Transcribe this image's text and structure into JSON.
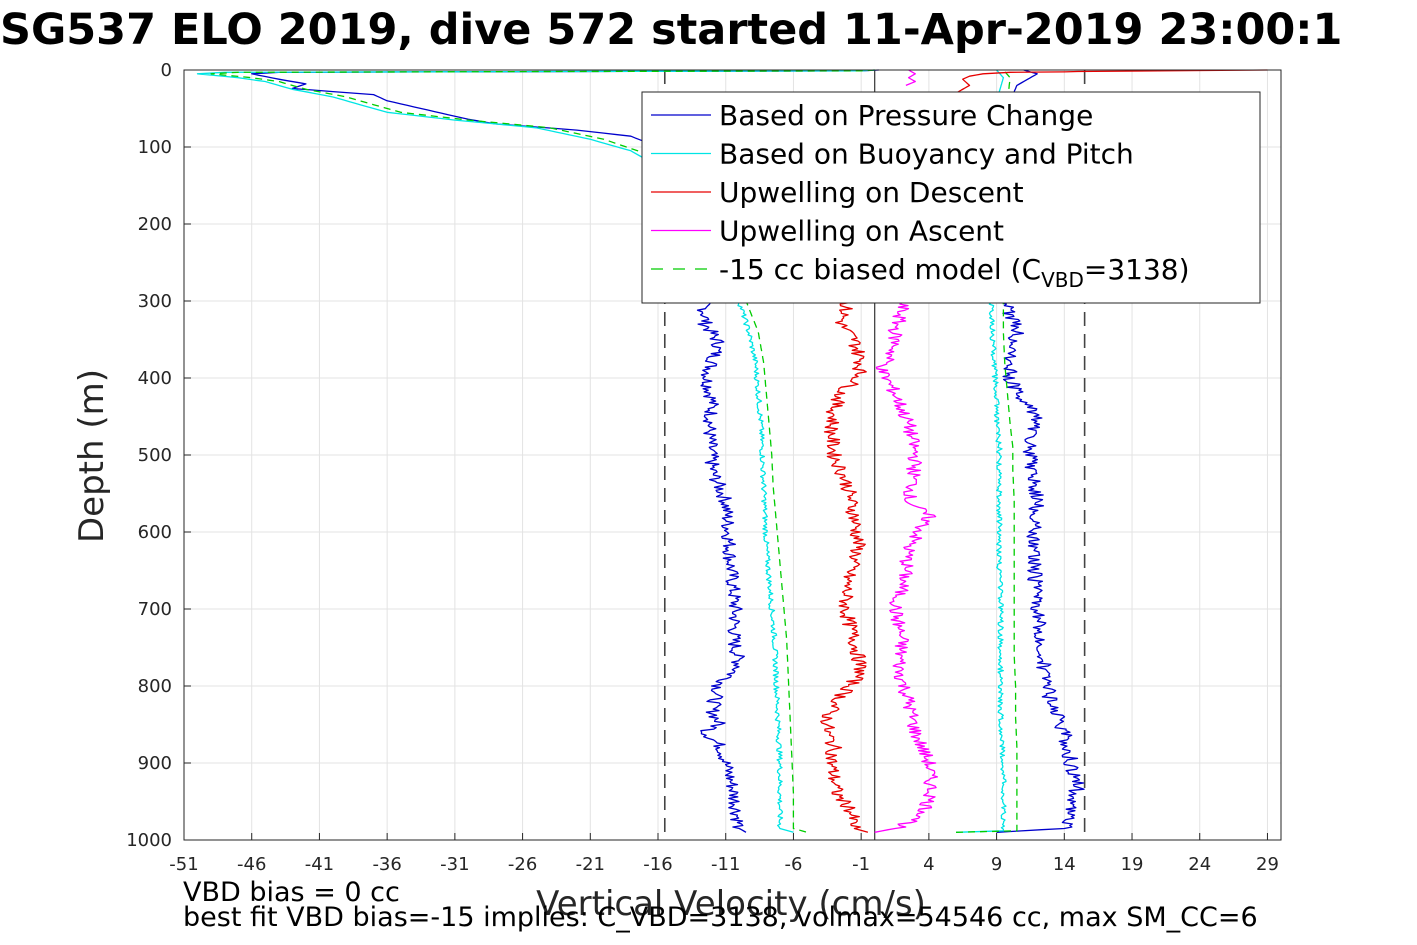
{
  "title": "SG537 ELO 2019, dive 572 started 11-Apr-2019 23:00:1",
  "footer": {
    "line1": "VBD bias = 0 cc",
    "line2": "best fit VBD bias=-15 implies: C_VBD=3138, volmax=54546 cc, max SM_CC=6"
  },
  "chart_data": {
    "type": "line",
    "xlabel": "Vertical Velocity (cm/s)",
    "ylabel": "Depth (m)",
    "xlim": [
      -51,
      30
    ],
    "ylim": [
      0,
      1000
    ],
    "y_reversed": true,
    "xticks": [
      -51,
      -46,
      -41,
      -36,
      -31,
      -26,
      -21,
      -16,
      -11,
      -6,
      -1,
      4,
      9,
      14,
      19,
      24,
      29
    ],
    "yticks": [
      0,
      100,
      200,
      300,
      400,
      500,
      600,
      700,
      800,
      900,
      1000
    ],
    "grid": true,
    "legend_position": "top-right",
    "reference_lines": {
      "zero_line_x": 0,
      "dashed_limits_x": [
        -15.5,
        15.5
      ]
    },
    "legend": [
      {
        "label": "Based on Pressure Change",
        "color": "#0000cc",
        "style": "solid"
      },
      {
        "label": "Based on Buoyancy and Pitch",
        "color": "#00e5e5",
        "style": "solid"
      },
      {
        "label": "Upwelling on Descent",
        "color": "#e60000",
        "style": "solid"
      },
      {
        "label": "Upwelling on Ascent",
        "color": "#ff00ff",
        "style": "solid"
      },
      {
        "label_prefix": "-15 cc biased model (C",
        "label_sub": "VBD",
        "label_suffix": "=3138)",
        "color": "#00cc00",
        "style": "dashed"
      }
    ],
    "series": [
      {
        "name": "Based on Pressure Change",
        "key": "pressure_desc",
        "color": "#0000cc",
        "width": 1.3,
        "points": [
          [
            0.3,
            0
          ],
          [
            -1,
            1
          ],
          [
            -44,
            3
          ],
          [
            -46,
            5
          ],
          [
            -44,
            12
          ],
          [
            -42,
            18
          ],
          [
            -43,
            24
          ],
          [
            -37,
            32
          ],
          [
            -36,
            40
          ],
          [
            -34,
            48
          ],
          [
            -32,
            56
          ],
          [
            -30,
            64
          ],
          [
            -28,
            70
          ],
          [
            -22,
            78
          ],
          [
            -18,
            86
          ],
          [
            -16,
            100
          ],
          [
            -15,
            115
          ],
          [
            -14,
            135
          ],
          [
            -13,
            165
          ],
          [
            -13,
            200
          ],
          [
            -13,
            250
          ],
          [
            -12.6,
            300
          ],
          [
            -12.5,
            330
          ],
          [
            -11.5,
            355
          ],
          [
            -12,
            380
          ],
          [
            -12.4,
            400
          ],
          [
            -12,
            430
          ],
          [
            -12.2,
            470
          ],
          [
            -12,
            520
          ],
          [
            -11,
            560
          ],
          [
            -10.8,
            600
          ],
          [
            -10.6,
            650
          ],
          [
            -10.3,
            700
          ],
          [
            -10.4,
            740
          ],
          [
            -10,
            775
          ],
          [
            -11.5,
            800
          ],
          [
            -12,
            830
          ],
          [
            -11.5,
            850
          ],
          [
            -12.5,
            860
          ],
          [
            -11.3,
            880
          ],
          [
            -11,
            900
          ],
          [
            -10.5,
            930
          ],
          [
            -10.2,
            960
          ],
          [
            -10,
            985
          ],
          [
            -9.5,
            990
          ]
        ]
      },
      {
        "name": "Based on Pressure Change",
        "key": "pressure_asc",
        "color": "#0000cc",
        "width": 1.3,
        "points": [
          [
            9,
            990
          ],
          [
            14,
            985
          ],
          [
            14.5,
            960
          ],
          [
            15,
            930
          ],
          [
            14.5,
            900
          ],
          [
            14,
            860
          ],
          [
            13,
            820
          ],
          [
            12.5,
            780
          ],
          [
            12.3,
            740
          ],
          [
            12,
            700
          ],
          [
            11.8,
            650
          ],
          [
            11.8,
            600
          ],
          [
            12,
            560
          ],
          [
            11.5,
            510
          ],
          [
            11.5,
            480
          ],
          [
            12,
            450
          ],
          [
            10.5,
            420
          ],
          [
            10,
            400
          ],
          [
            10,
            380
          ],
          [
            10.5,
            340
          ],
          [
            9.6,
            300
          ],
          [
            9.5,
            250
          ],
          [
            9.5,
            200
          ],
          [
            9.5,
            150
          ],
          [
            10,
            100
          ],
          [
            10,
            40
          ],
          [
            10.5,
            20
          ],
          [
            12,
            5
          ],
          [
            11,
            0
          ]
        ]
      },
      {
        "name": "Based on Buoyancy and Pitch",
        "key": "buoy_desc",
        "color": "#00e5e5",
        "width": 1.3,
        "points": [
          [
            0,
            0
          ],
          [
            -1,
            1
          ],
          [
            -48,
            3
          ],
          [
            -50,
            5
          ],
          [
            -47,
            10
          ],
          [
            -45,
            15
          ],
          [
            -43,
            25
          ],
          [
            -40,
            35
          ],
          [
            -38,
            45
          ],
          [
            -36,
            55
          ],
          [
            -31,
            65
          ],
          [
            -25,
            75
          ],
          [
            -21,
            90
          ],
          [
            -18,
            105
          ],
          [
            -17,
            115
          ],
          [
            -16,
            128
          ],
          [
            -14,
            150
          ],
          [
            -11,
            200
          ],
          [
            -10,
            250
          ],
          [
            -10,
            300
          ],
          [
            -9.3,
            340
          ],
          [
            -8.8,
            380
          ],
          [
            -8.6,
            420
          ],
          [
            -8.4,
            460
          ],
          [
            -8.3,
            500
          ],
          [
            -8.2,
            540
          ],
          [
            -8.1,
            580
          ],
          [
            -8,
            620
          ],
          [
            -7.8,
            660
          ],
          [
            -7.6,
            700
          ],
          [
            -7.4,
            740
          ],
          [
            -7.3,
            780
          ],
          [
            -7.2,
            820
          ],
          [
            -7.1,
            860
          ],
          [
            -7,
            900
          ],
          [
            -7,
            940
          ],
          [
            -7,
            985
          ],
          [
            -6,
            990
          ]
        ]
      },
      {
        "name": "Based on Buoyancy and Pitch",
        "key": "buoy_asc",
        "color": "#00e5e5",
        "width": 1.3,
        "points": [
          [
            6,
            990
          ],
          [
            9.5,
            988
          ],
          [
            9.5,
            960
          ],
          [
            9.5,
            920
          ],
          [
            9.4,
            880
          ],
          [
            9.3,
            840
          ],
          [
            9.3,
            800
          ],
          [
            9.3,
            760
          ],
          [
            9.3,
            720
          ],
          [
            9.3,
            680
          ],
          [
            9.2,
            640
          ],
          [
            9.2,
            600
          ],
          [
            9.2,
            560
          ],
          [
            9.2,
            520
          ],
          [
            9.2,
            490
          ],
          [
            9,
            460
          ],
          [
            9,
            420
          ],
          [
            8.8,
            380
          ],
          [
            8.7,
            340
          ],
          [
            8.6,
            300
          ],
          [
            8.5,
            250
          ],
          [
            8.5,
            200
          ],
          [
            8.6,
            100
          ],
          [
            9,
            40
          ],
          [
            9.5,
            10
          ],
          [
            9,
            0
          ]
        ]
      },
      {
        "name": "-15 cc biased model (C_VBD=3138)",
        "key": "model_desc",
        "color": "#00cc00",
        "width": 1.3,
        "dashed": true,
        "points": [
          [
            0,
            0
          ],
          [
            -1,
            1
          ],
          [
            -47,
            3
          ],
          [
            -49,
            5
          ],
          [
            -46,
            10
          ],
          [
            -44,
            15
          ],
          [
            -42,
            25
          ],
          [
            -39,
            35
          ],
          [
            -37,
            45
          ],
          [
            -35,
            55
          ],
          [
            -30,
            65
          ],
          [
            -24,
            75
          ],
          [
            -20,
            90
          ],
          [
            -17.5,
            105
          ],
          [
            -16.5,
            115
          ],
          [
            -15.5,
            128
          ],
          [
            -13.5,
            150
          ],
          [
            -10.5,
            200
          ],
          [
            -9.5,
            250
          ],
          [
            -9.5,
            300
          ],
          [
            -8.6,
            340
          ],
          [
            -8.2,
            380
          ],
          [
            -8,
            420
          ],
          [
            -7.8,
            460
          ],
          [
            -7.6,
            500
          ],
          [
            -7.5,
            540
          ],
          [
            -7.3,
            580
          ],
          [
            -7.1,
            620
          ],
          [
            -6.9,
            660
          ],
          [
            -6.7,
            700
          ],
          [
            -6.5,
            740
          ],
          [
            -6.4,
            780
          ],
          [
            -6.3,
            820
          ],
          [
            -6.2,
            860
          ],
          [
            -6.1,
            900
          ],
          [
            -6,
            940
          ],
          [
            -6,
            985
          ],
          [
            -5,
            990
          ]
        ]
      },
      {
        "name": "-15 cc biased model (C_VBD=3138)",
        "key": "model_asc",
        "color": "#00cc00",
        "width": 1.3,
        "dashed": true,
        "points": [
          [
            6,
            990
          ],
          [
            10.5,
            988
          ],
          [
            10.5,
            960
          ],
          [
            10.5,
            920
          ],
          [
            10.5,
            880
          ],
          [
            10.4,
            840
          ],
          [
            10.4,
            800
          ],
          [
            10.3,
            760
          ],
          [
            10.3,
            720
          ],
          [
            10.3,
            680
          ],
          [
            10.3,
            640
          ],
          [
            10.3,
            600
          ],
          [
            10.3,
            560
          ],
          [
            10.2,
            520
          ],
          [
            10.2,
            490
          ],
          [
            10,
            460
          ],
          [
            9.8,
            420
          ],
          [
            9.6,
            380
          ],
          [
            9.5,
            340
          ],
          [
            9.5,
            300
          ],
          [
            9.3,
            250
          ],
          [
            9.3,
            200
          ],
          [
            9.4,
            100
          ],
          [
            9.8,
            40
          ],
          [
            10,
            10
          ],
          [
            9.5,
            0
          ]
        ]
      },
      {
        "name": "Upwelling on Descent",
        "key": "upwell_desc",
        "color": "#e60000",
        "width": 1.3,
        "points": [
          [
            -1.5,
            290
          ],
          [
            -2,
            300
          ],
          [
            -2.5,
            330
          ],
          [
            -1.5,
            350
          ],
          [
            -1,
            380
          ],
          [
            -1.2,
            400
          ],
          [
            -2.5,
            420
          ],
          [
            -3,
            440
          ],
          [
            -3.2,
            470
          ],
          [
            -3,
            500
          ],
          [
            -2,
            540
          ],
          [
            -1.5,
            580
          ],
          [
            -1.2,
            620
          ],
          [
            -2,
            660
          ],
          [
            -2.2,
            700
          ],
          [
            -1.5,
            740
          ],
          [
            -1,
            780
          ],
          [
            -1.8,
            800
          ],
          [
            -2.8,
            820
          ],
          [
            -3.5,
            840
          ],
          [
            -3.5,
            860
          ],
          [
            -3,
            880
          ],
          [
            -3.2,
            900
          ],
          [
            -2.8,
            940
          ],
          [
            -1.8,
            960
          ],
          [
            -1.5,
            985
          ],
          [
            -0.5,
            990
          ]
        ]
      },
      {
        "name": "Upwelling on Descent",
        "key": "upwell_desc_top",
        "color": "#e60000",
        "width": 1.3,
        "points": [
          [
            29,
            0
          ],
          [
            15,
            2
          ],
          [
            14,
            2.5
          ],
          [
            10,
            3
          ],
          [
            8,
            5
          ],
          [
            7,
            8
          ],
          [
            6.5,
            12
          ],
          [
            7,
            20
          ],
          [
            6,
            30
          ]
        ]
      },
      {
        "name": "Upwelling on Ascent",
        "key": "upwell_asc",
        "color": "#ff00ff",
        "width": 1.3,
        "points": [
          [
            2,
            290
          ],
          [
            2,
            310
          ],
          [
            1.5,
            340
          ],
          [
            1.5,
            360
          ],
          [
            0.5,
            390
          ],
          [
            1.5,
            420
          ],
          [
            2.5,
            460
          ],
          [
            3,
            500
          ],
          [
            2.8,
            540
          ],
          [
            2.5,
            560
          ],
          [
            4,
            580
          ],
          [
            2.5,
            620
          ],
          [
            2.2,
            660
          ],
          [
            1.5,
            700
          ],
          [
            2,
            740
          ],
          [
            1.8,
            780
          ],
          [
            2.5,
            820
          ],
          [
            3,
            860
          ],
          [
            4,
            900
          ],
          [
            4.2,
            940
          ],
          [
            3.5,
            970
          ],
          [
            1.5,
            985
          ],
          [
            0,
            990
          ]
        ]
      },
      {
        "name": "Upwelling on Ascent",
        "key": "upwell_asc_top",
        "color": "#ff00ff",
        "width": 1.3,
        "points": [
          [
            2.5,
            0
          ],
          [
            3,
            5
          ],
          [
            2.5,
            10
          ],
          [
            3,
            15
          ],
          [
            2.3,
            20
          ]
        ]
      }
    ]
  }
}
